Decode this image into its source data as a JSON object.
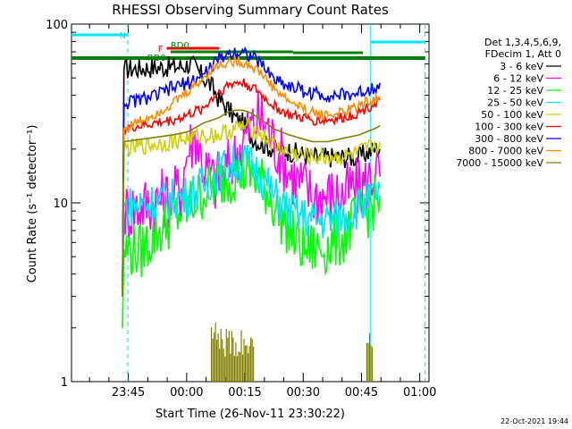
{
  "chart_data": {
    "type": "line",
    "title": "RHESSI Observing Summary Count Rates",
    "xlabel": "Start Time (26-Nov-11 23:30:22)",
    "ylabel": "Count Rate (s⁻¹ detector⁻¹)",
    "x_unit": "minutes after 23:30:22",
    "xlim": [
      0,
      92
    ],
    "ylim": [
      1,
      100
    ],
    "y_scale": "log",
    "x_ticks": [
      {
        "x": 14.63,
        "label": "23:45"
      },
      {
        "x": 29.63,
        "label": "00:00"
      },
      {
        "x": 44.63,
        "label": "00:15"
      },
      {
        "x": 59.63,
        "label": "00:30"
      },
      {
        "x": 74.63,
        "label": "00:45"
      },
      {
        "x": 89.63,
        "label": "01:00"
      }
    ],
    "y_ticks": [
      {
        "y": 1,
        "label": "1"
      },
      {
        "y": 10,
        "label": "10"
      },
      {
        "y": 100,
        "label": "100"
      }
    ],
    "legend": {
      "placement": "right",
      "header": [
        "Det 1,3,4,5,6,9,",
        "FDecim 1, Att 0"
      ]
    },
    "series": [
      {
        "name": "3 - 6 keV",
        "color": "#000000",
        "x": [
          13.1,
          13.5,
          20,
          28,
          31,
          33,
          36,
          38,
          40,
          42,
          44,
          46,
          48,
          50,
          52,
          54,
          58,
          62,
          66,
          70,
          72,
          74,
          76,
          78,
          79.4
        ],
        "y": [
          3,
          56,
          57,
          58,
          60,
          53,
          45,
          38,
          34,
          30,
          28,
          24,
          22,
          21,
          20,
          20,
          19,
          18,
          18,
          18,
          18,
          18,
          19,
          20,
          20
        ]
      },
      {
        "name": "6 - 12 keV",
        "color": "#ff00ff",
        "x": [
          13.1,
          13.5,
          20,
          26,
          28,
          30,
          32,
          34,
          36,
          37,
          38,
          40,
          41,
          42,
          43,
          44,
          46,
          48,
          50,
          52,
          56,
          62,
          66,
          70,
          72,
          74,
          76,
          78,
          79.4
        ],
        "y": [
          3,
          9,
          10,
          11,
          12,
          20,
          24,
          16,
          14,
          13,
          14,
          15,
          17,
          18,
          20,
          22,
          26,
          30,
          28,
          22,
          15,
          11,
          11,
          11,
          12,
          12,
          13,
          15,
          14
        ]
      },
      {
        "name": "12 - 25 keV",
        "color": "#00ff00",
        "x": [
          13.1,
          13.5,
          18,
          22,
          26,
          30,
          34,
          38,
          40,
          42,
          44,
          46,
          48,
          50,
          52,
          56,
          58,
          60,
          62,
          66,
          70,
          72,
          74,
          76,
          78,
          79.4
        ],
        "y": [
          2,
          5.5,
          5.4,
          6.8,
          8.2,
          9.5,
          11.5,
          13,
          14,
          14.5,
          15,
          14.5,
          13.5,
          12,
          10,
          7,
          6,
          5.5,
          5.5,
          5.7,
          6.5,
          7.5,
          8.5,
          9,
          10,
          11
        ]
      },
      {
        "name": "25 - 50 keV",
        "color": "#00e5ee",
        "x": [
          13.1,
          13.5,
          20,
          26,
          30,
          34,
          38,
          40,
          42,
          44,
          46,
          48,
          50,
          52,
          56,
          62,
          66,
          70,
          74,
          76,
          78,
          79.4
        ],
        "y": [
          3,
          9.5,
          10,
          10.5,
          11,
          12.5,
          15,
          16,
          16.5,
          17,
          16.5,
          15,
          13,
          11,
          9,
          8,
          8,
          8.5,
          9.5,
          10,
          11,
          12
        ]
      },
      {
        "name": "50 - 100 keV",
        "color": "#d0d000",
        "x": [
          13.1,
          13.5,
          20,
          26,
          30,
          34,
          38,
          40,
          42,
          44,
          46,
          48,
          50,
          52,
          56,
          62,
          66,
          70,
          74,
          76,
          78,
          79.4
        ],
        "y": [
          3,
          20,
          21,
          22,
          23,
          24,
          24,
          25,
          26,
          27,
          26,
          25,
          23,
          21,
          19,
          18,
          18,
          18,
          19,
          20,
          21,
          22
        ]
      },
      {
        "name": "100 - 300 keV",
        "color": "#ff0000",
        "x": [
          13.1,
          13.5,
          18,
          22,
          26,
          30,
          34,
          36,
          38,
          40,
          42,
          44,
          46,
          48,
          50,
          52,
          56,
          62,
          66,
          70,
          74,
          76,
          78,
          79.4
        ],
        "y": [
          3,
          26,
          27,
          28,
          29,
          31,
          34,
          38,
          42,
          45,
          47,
          47,
          45,
          42,
          38,
          35,
          31,
          29,
          29,
          30,
          32,
          34,
          36,
          38
        ]
      },
      {
        "name": "300 - 800 keV",
        "color": "#0000ff",
        "x": [
          13.1,
          13.5,
          18,
          22,
          26,
          30,
          34,
          36,
          38,
          40,
          42,
          44,
          46,
          48,
          50,
          52,
          56,
          58,
          60,
          62,
          66,
          70,
          74,
          76,
          78,
          79.4
        ],
        "y": [
          3,
          36,
          38,
          40,
          44,
          47,
          52,
          58,
          64,
          68,
          70,
          70,
          67,
          62,
          56,
          50,
          45,
          44,
          42,
          41,
          40,
          40,
          41,
          43,
          45,
          47
        ]
      },
      {
        "name": "800 - 7000 keV",
        "color": "#ff8c00",
        "x": [
          13.1,
          13.5,
          18,
          22,
          26,
          30,
          34,
          36,
          38,
          40,
          42,
          44,
          46,
          48,
          50,
          52,
          56,
          62,
          66,
          70,
          74,
          76,
          78,
          79.4
        ],
        "y": [
          3,
          26,
          29,
          32,
          36,
          42,
          50,
          56,
          59,
          61,
          62,
          61,
          59,
          55,
          50,
          44,
          37,
          32,
          31,
          32,
          35,
          37,
          38,
          39
        ]
      },
      {
        "name": "7000 - 15000 keV",
        "color": "#808000",
        "x": [
          13.1,
          13.5,
          20,
          26,
          30,
          34,
          38,
          40,
          42,
          44,
          46,
          48,
          50,
          52,
          56,
          62,
          66,
          70,
          74,
          76,
          78,
          79.4
        ],
        "y": [
          3,
          22,
          23,
          24,
          25,
          28,
          30,
          32,
          33,
          33,
          32,
          30,
          28,
          26,
          24,
          22,
          22,
          23,
          24,
          25,
          26,
          27
        ]
      }
    ],
    "annotations": [
      {
        "label": "N",
        "color": "#00e5ee",
        "kind": "night",
        "x_range": [
          0,
          14.5
        ],
        "dashed_end": 14.5
      },
      {
        "label": "",
        "color": "#00e5ee",
        "kind": "night",
        "x_range": [
          77,
          91
        ],
        "dashed_start": 77,
        "dashed_end": 91
      },
      {
        "label": "F",
        "color": "#ff0000",
        "kind": "flare",
        "x_range": [
          24.5,
          38
        ]
      },
      {
        "label": "RD0",
        "color": "#008000",
        "kind": "decimation",
        "x_range": [
          25.5,
          57
        ]
      },
      {
        "label": "RD0",
        "color": "#008000",
        "kind": "decimation",
        "x_range": [
          0,
          91
        ]
      },
      {
        "label": "",
        "color": "#008000",
        "kind": "decimation",
        "x_range": [
          57,
          75
        ]
      }
    ]
  },
  "timestamp": "22-Oct-2021 19:44"
}
